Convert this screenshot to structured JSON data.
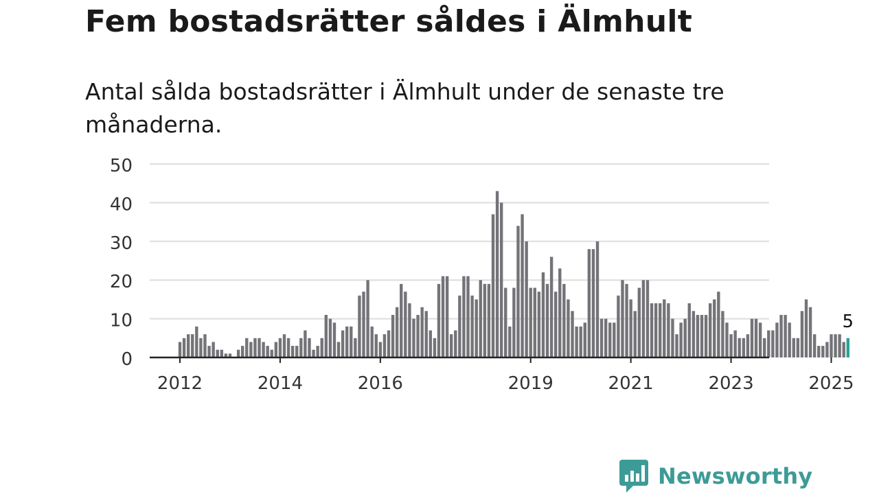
{
  "title": "Fem bostadsrätter såldes i Älmhult",
  "subtitle": "Antal sålda bostadsrätter i Älmhult under de senaste tre månaderna.",
  "brand": "Newsworthy",
  "colors": {
    "bar": "#747378",
    "highlight": "#2aa198",
    "grid": "#dddddd",
    "axis": "#222222",
    "brand": "#3d9b97"
  },
  "chart_data": {
    "type": "bar",
    "title": "Fem bostadsrätter såldes i Älmhult",
    "xlabel": "",
    "ylabel": "",
    "ylim": [
      0,
      50
    ],
    "y_ticks": [
      0,
      10,
      20,
      30,
      40,
      50
    ],
    "x_ticks": [
      "2012",
      "2014",
      "2016",
      "2019",
      "2021",
      "2023",
      "2025"
    ],
    "grid": true,
    "start_month": "2012-01",
    "end_month": "2025-05",
    "highlight_label": "5",
    "values": [
      4,
      5,
      6,
      6,
      8,
      5,
      6,
      3,
      4,
      2,
      2,
      1,
      1,
      0,
      2,
      3,
      5,
      4,
      5,
      5,
      4,
      3,
      2,
      4,
      5,
      6,
      5,
      3,
      3,
      5,
      7,
      5,
      2,
      3,
      5,
      11,
      10,
      9,
      4,
      7,
      8,
      8,
      5,
      16,
      17,
      20,
      8,
      6,
      4,
      6,
      7,
      11,
      13,
      19,
      17,
      14,
      10,
      11,
      13,
      12,
      7,
      5,
      19,
      21,
      21,
      6,
      7,
      16,
      21,
      21,
      16,
      15,
      20,
      19,
      19,
      37,
      43,
      40,
      18,
      8,
      18,
      34,
      37,
      30,
      18,
      18,
      17,
      22,
      19,
      26,
      17,
      23,
      19,
      15,
      12,
      8,
      8,
      9,
      28,
      28,
      30,
      10,
      10,
      9,
      9,
      16,
      20,
      19,
      15,
      12,
      18,
      20,
      20,
      14,
      14,
      14,
      15,
      14,
      10,
      6,
      9,
      10,
      14,
      12,
      11,
      11,
      11,
      14,
      15,
      17,
      12,
      9,
      6,
      7,
      5,
      5,
      6,
      10,
      10,
      9,
      5,
      7,
      7,
      9,
      11,
      11,
      9,
      5,
      5,
      12,
      15,
      13,
      6,
      3,
      3,
      4,
      6,
      6,
      6,
      4,
      5
    ]
  }
}
